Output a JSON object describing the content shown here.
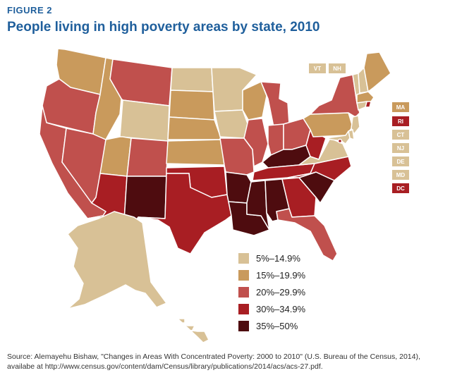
{
  "figure_label": "FIGURE 2",
  "title": "People living in high poverty areas by state, 2010",
  "colors": {
    "c1": "#d8c196",
    "c2": "#c99a5c",
    "c3": "#c0504d",
    "c4": "#a81e23",
    "c5": "#4e0c0f",
    "border": "#ffffff"
  },
  "legend": [
    {
      "label": "5%–14.9%",
      "color": "#d8c196"
    },
    {
      "label": "15%–19.9%",
      "color": "#c99a5c"
    },
    {
      "label": "20%–29.9%",
      "color": "#c0504d"
    },
    {
      "label": "30%–34.9%",
      "color": "#a81e23"
    },
    {
      "label": "35%–50%",
      "color": "#4e0c0f"
    }
  ],
  "small_states": {
    "vt": "VT",
    "nh": "NH",
    "ma": "MA",
    "ri": "RI",
    "ct": "CT",
    "nj": "NJ",
    "de": "DE",
    "md": "MD",
    "dc": "DC"
  },
  "states": {
    "WA": "15%–19.9%",
    "OR": "20%–29.9%",
    "CA": "20%–29.9%",
    "NV": "20%–29.9%",
    "ID": "15%–19.9%",
    "MT": "20%–29.9%",
    "WY": "5%–14.9%",
    "UT": "15%–19.9%",
    "AZ": "30%–34.9%",
    "CO": "20%–29.9%",
    "NM": "35%–50%",
    "ND": "5%–14.9%",
    "SD": "15%–19.9%",
    "NE": "15%–19.9%",
    "KS": "15%–19.9%",
    "OK": "30%–34.9%",
    "TX": "30%–34.9%",
    "MN": "5%–14.9%",
    "IA": "5%–14.9%",
    "MO": "20%–29.9%",
    "AR": "35%–50%",
    "LA": "35%–50%",
    "WI": "15%–19.9%",
    "IL": "20%–29.9%",
    "MI": "20%–29.9%",
    "IN": "20%–29.9%",
    "OH": "20%–29.9%",
    "KY": "35%–50%",
    "TN": "30%–34.9%",
    "MS": "35%–50%",
    "AL": "35%–50%",
    "GA": "30%–34.9%",
    "FL": "20%–29.9%",
    "SC": "35%–50%",
    "NC": "30%–34.9%",
    "VA": "5%–14.9%",
    "WV": "30%–34.9%",
    "PA": "15%–19.9%",
    "NY": "20%–29.9%",
    "VT": "5%–14.9%",
    "NH": "5%–14.9%",
    "ME": "15%–19.9%",
    "MA": "15%–19.9%",
    "RI": "30%–34.9%",
    "CT": "5%–14.9%",
    "NJ": "5%–14.9%",
    "DE": "5%–14.9%",
    "MD": "5%–14.9%",
    "DC": "30%–34.9%",
    "AK": "5%–14.9%",
    "HI": "5%–14.9%"
  },
  "source": "Source: Alemayehu Bishaw, \"Changes in Areas With Concentrated Poverty: 2000 to 2010\" (U.S. Bureau of the Census, 2014), availabe at http://www.census.gov/content/dam/Census/library/publications/2014/acs/acs-27.pdf."
}
